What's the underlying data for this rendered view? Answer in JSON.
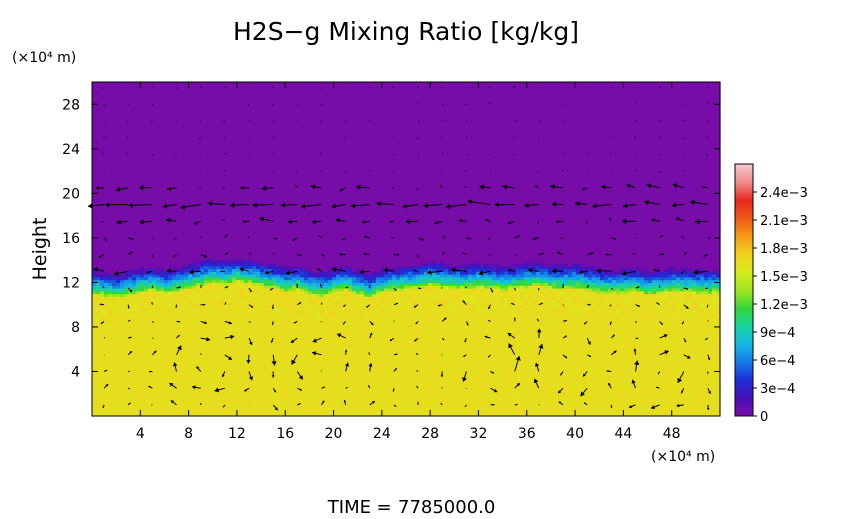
{
  "chart_data": {
    "type": "heatmap",
    "title": "H2S−g Mixing Ratio [kg/kg]",
    "ylabel": "Height",
    "x_unit": "(×10⁴ m)",
    "y_unit": "(×10⁴ m)",
    "xlim": [
      0,
      52
    ],
    "ylim": [
      0,
      30
    ],
    "x_ticks": [
      4,
      8,
      12,
      16,
      20,
      24,
      28,
      32,
      36,
      40,
      44,
      48
    ],
    "x_tick_labels": [
      "4",
      "8",
      "12",
      "16",
      "20",
      "24",
      "28",
      "32",
      "36",
      "40",
      "44",
      "48"
    ],
    "y_ticks": [
      4,
      8,
      12,
      16,
      20,
      24,
      28
    ],
    "y_tick_labels": [
      "4",
      "8",
      "12",
      "16",
      "20",
      "24",
      "28"
    ],
    "colorbar": {
      "min": 0,
      "max": 0.0027,
      "ticks": [
        0,
        0.0003,
        0.0006,
        0.0009,
        0.0012,
        0.0015,
        0.0018,
        0.0021,
        0.0024
      ],
      "tick_labels": [
        "0",
        "3e−4",
        "6e−4",
        "9e−4",
        "1.2e−3",
        "1.5e−3",
        "1.8e−3",
        "2.1e−3",
        "2.4e−3"
      ],
      "colors": [
        "#7a0ca8",
        "#4a10b8",
        "#1f2bd6",
        "#1478e6",
        "#16b4e6",
        "#18d6a0",
        "#34d63a",
        "#9ee61e",
        "#d6ec1e",
        "#f2d21c",
        "#f59a18",
        "#ef5a1a",
        "#e8281e",
        "#f08a8a",
        "#f8c8c8"
      ]
    },
    "field": {
      "interface_height": [
        12.4,
        12.2,
        12.0,
        12.3,
        12.5,
        12.7,
        12.4,
        12.6,
        12.9,
        13.1,
        13.4,
        13.2,
        13.5,
        13.3,
        13.1,
        12.9,
        12.6,
        12.8,
        12.4,
        12.2,
        12.5,
        12.8,
        12.3,
        12.1,
        12.5,
        12.7,
        12.8,
        12.9,
        13.2,
        13.0,
        12.9,
        12.8,
        13.0,
        12.9,
        12.7,
        12.9,
        13.0,
        13.1,
        12.9,
        12.8,
        12.9,
        12.7,
        12.5,
        12.4,
        12.5,
        12.6,
        12.3,
        12.4,
        12.6,
        12.5,
        12.5,
        12.4,
        12.5
      ],
      "upper_value": 1e-05,
      "lower_value": 0.00165
    },
    "vector_field": {
      "cells": [
        {
          "center": 10,
          "direction": "ccw"
        },
        {
          "center": 19,
          "direction": "cw"
        },
        {
          "center": 34,
          "direction": "cw"
        },
        {
          "center": 38,
          "direction": "ccw"
        },
        {
          "center": 47,
          "direction": "ccw"
        }
      ]
    },
    "time_label": "TIME",
    "time_value": "7785000.0",
    "grid": false
  }
}
